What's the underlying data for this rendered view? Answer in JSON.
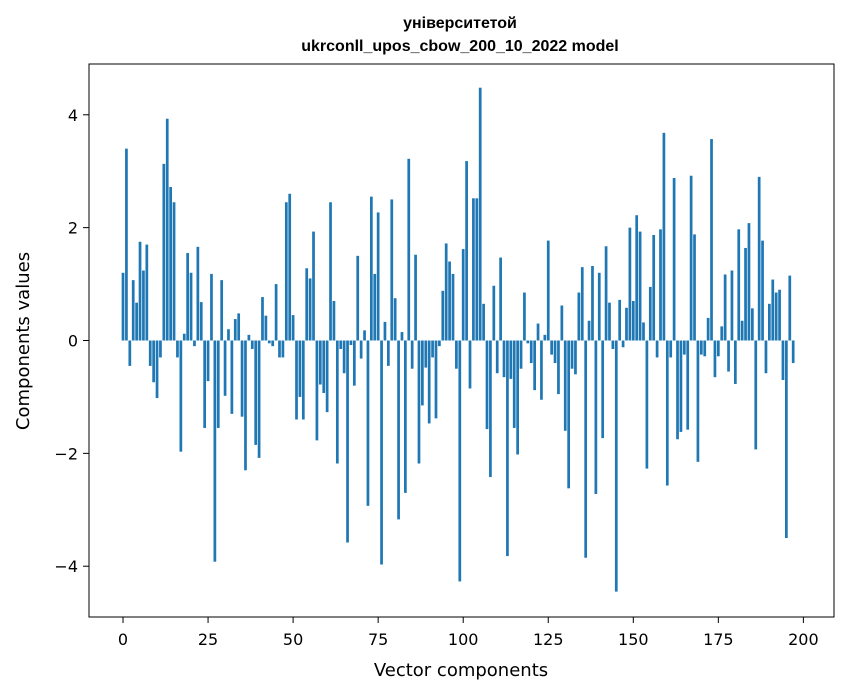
{
  "chart_data": {
    "type": "bar",
    "title": "університетой",
    "subtitle": "ukrconll_upos_cbow_200_10_2022 model",
    "xlabel": "Vector components",
    "ylabel": "Components values",
    "xlim": [
      -10,
      209
    ],
    "ylim": [
      -4.9,
      4.9
    ],
    "xticks": [
      0,
      25,
      50,
      75,
      100,
      125,
      150,
      175,
      200
    ],
    "yticks": [
      -4,
      -2,
      0,
      2,
      4
    ],
    "grid": false,
    "bar_color": "#1f77b4",
    "values": [
      1.2,
      3.4,
      -0.45,
      1.07,
      0.67,
      1.75,
      1.24,
      1.7,
      -0.45,
      -0.74,
      -1.02,
      -0.3,
      3.13,
      3.93,
      2.72,
      2.45,
      -0.3,
      -1.97,
      0.12,
      1.55,
      1.2,
      -0.1,
      1.66,
      0.68,
      -1.55,
      -0.72,
      1.18,
      -3.92,
      -1.55,
      1.07,
      -0.98,
      0.2,
      -1.3,
      0.38,
      0.48,
      -1.35,
      -2.3,
      0.1,
      -0.15,
      -1.85,
      -2.08,
      0.77,
      0.44,
      -0.05,
      -0.1,
      1.0,
      -0.3,
      -0.3,
      2.45,
      2.6,
      0.45,
      -1.4,
      -1.0,
      -1.4,
      1.28,
      1.1,
      1.93,
      -1.77,
      -0.78,
      -0.93,
      -1.27,
      2.45,
      0.7,
      -2.18,
      -0.15,
      -0.58,
      -3.58,
      -0.08,
      -0.8,
      1.5,
      -0.32,
      0.18,
      -2.93,
      2.55,
      1.18,
      2.27,
      -3.97,
      0.33,
      -0.45,
      2.5,
      0.75,
      -3.17,
      0.15,
      -2.7,
      3.22,
      -0.5,
      1.52,
      -2.18,
      -1.15,
      -0.48,
      -1.47,
      -0.3,
      -1.38,
      -0.1,
      0.88,
      1.72,
      1.4,
      1.18,
      -0.5,
      -4.27,
      1.62,
      3.18,
      -0.85,
      2.52,
      2.52,
      4.48,
      0.65,
      -1.57,
      -2.42,
      0.97,
      -0.58,
      1.47,
      -0.65,
      -3.82,
      -0.68,
      -1.55,
      -2.02,
      -0.5,
      0.85,
      -0.05,
      -0.4,
      -0.88,
      0.3,
      -1.05,
      0.1,
      1.77,
      -0.25,
      -0.4,
      -0.95,
      0.62,
      -1.6,
      -2.62,
      -0.5,
      -0.6,
      0.85,
      1.3,
      -3.85,
      0.35,
      1.32,
      -2.72,
      1.2,
      -1.73,
      1.67,
      0.67,
      -0.15,
      -4.45,
      0.72,
      -0.12,
      0.58,
      2.0,
      0.7,
      2.22,
      1.93,
      0.32,
      -2.27,
      0.95,
      1.87,
      -0.3,
      1.97,
      3.68,
      -2.57,
      -0.3,
      2.88,
      -1.75,
      -1.62,
      -0.25,
      -1.58,
      2.92,
      1.88,
      -2.15,
      -0.25,
      -0.28,
      0.4,
      3.57,
      -0.65,
      -0.28,
      0.25,
      1.17,
      -0.55,
      1.24,
      -0.77,
      1.97,
      0.35,
      1.64,
      2.08,
      0.57,
      -1.93,
      2.9,
      1.77,
      -0.58,
      0.65,
      1.08,
      0.85,
      0.9,
      -0.7,
      -3.5,
      1.15,
      -0.4
    ]
  }
}
